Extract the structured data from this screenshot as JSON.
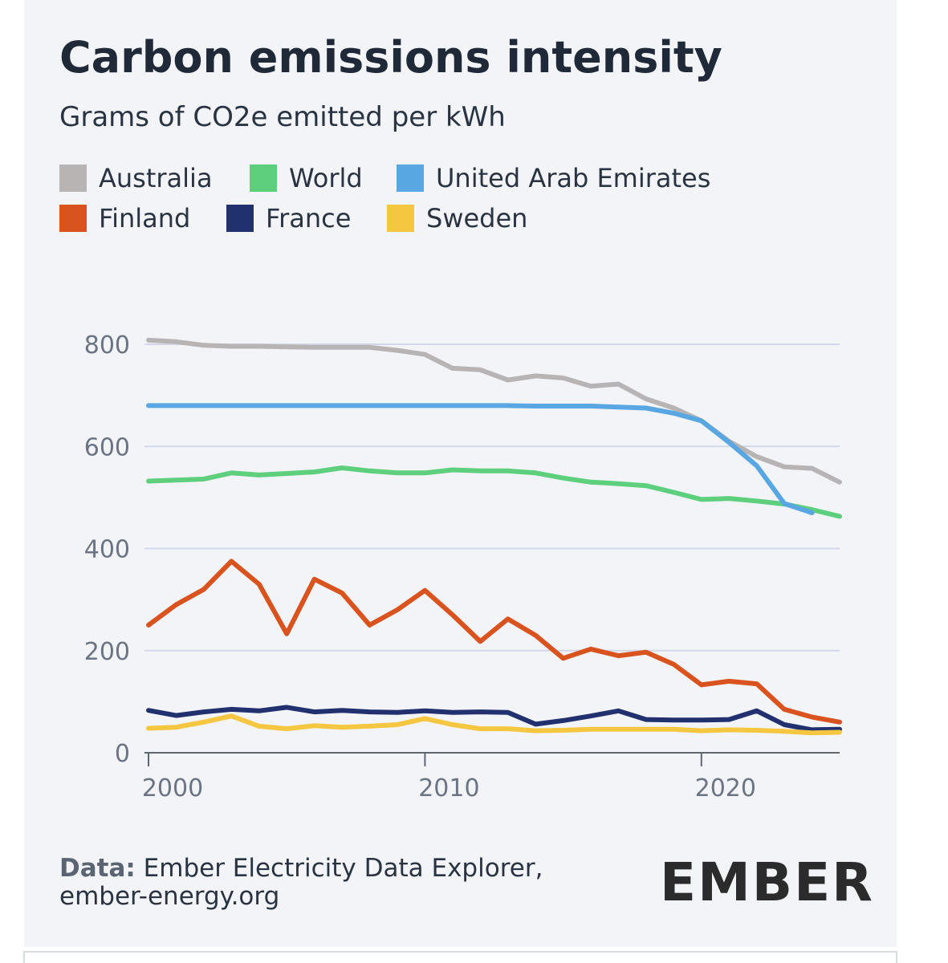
{
  "chart_data": {
    "type": "line",
    "title": "Carbon emissions intensity",
    "subtitle": "Grams of CO2e emitted per kWh",
    "x": [
      2000,
      2001,
      2002,
      2003,
      2004,
      2005,
      2006,
      2007,
      2008,
      2009,
      2010,
      2011,
      2012,
      2013,
      2014,
      2015,
      2016,
      2017,
      2018,
      2019,
      2020,
      2021,
      2022,
      2023,
      2024,
      2025
    ],
    "xlim": [
      2000,
      2025
    ],
    "xticks": [
      2000,
      2010,
      2020
    ],
    "ylim": [
      0,
      800
    ],
    "yticks": [
      0,
      200,
      400,
      600,
      800
    ],
    "grid": true,
    "series": [
      {
        "name": "Australia",
        "color": "#b8b4b4",
        "values": [
          808,
          805,
          798,
          796,
          796,
          795,
          794,
          794,
          794,
          788,
          780,
          753,
          750,
          730,
          738,
          734,
          718,
          722,
          693,
          675,
          650,
          610,
          580,
          560,
          557,
          530
        ]
      },
      {
        "name": "World",
        "color": "#5dcf7d",
        "values": [
          532,
          534,
          536,
          548,
          544,
          547,
          550,
          558,
          552,
          548,
          548,
          554,
          552,
          552,
          548,
          538,
          530,
          527,
          523,
          510,
          496,
          498,
          493,
          487,
          476,
          463
        ]
      },
      {
        "name": "United Arab Emirates",
        "color": "#58a7e2",
        "values": [
          680,
          680,
          680,
          680,
          680,
          680,
          680,
          680,
          680,
          680,
          680,
          680,
          680,
          680,
          679,
          679,
          679,
          677,
          675,
          665,
          650,
          608,
          562,
          488,
          470,
          null
        ]
      },
      {
        "name": "Finland",
        "color": "#d9531f",
        "values": [
          250,
          290,
          320,
          375,
          330,
          233,
          340,
          313,
          250,
          280,
          318,
          270,
          218,
          262,
          230,
          185,
          203,
          190,
          197,
          173,
          133,
          140,
          135,
          85,
          70,
          60
        ]
      },
      {
        "name": "France",
        "color": "#21306e",
        "values": [
          83,
          73,
          80,
          85,
          82,
          89,
          80,
          83,
          80,
          79,
          82,
          79,
          80,
          79,
          56,
          63,
          72,
          82,
          65,
          64,
          64,
          65,
          82,
          55,
          45,
          46
        ]
      },
      {
        "name": "Sweden",
        "color": "#f5c640",
        "values": [
          48,
          50,
          60,
          72,
          52,
          47,
          53,
          50,
          52,
          55,
          67,
          55,
          47,
          47,
          43,
          44,
          46,
          46,
          46,
          46,
          43,
          45,
          44,
          42,
          39,
          40
        ]
      }
    ],
    "source": {
      "label": "Data:",
      "text": "Ember Electricity Data Explorer,",
      "url": "ember-energy.org"
    },
    "logo": "EMBER"
  }
}
